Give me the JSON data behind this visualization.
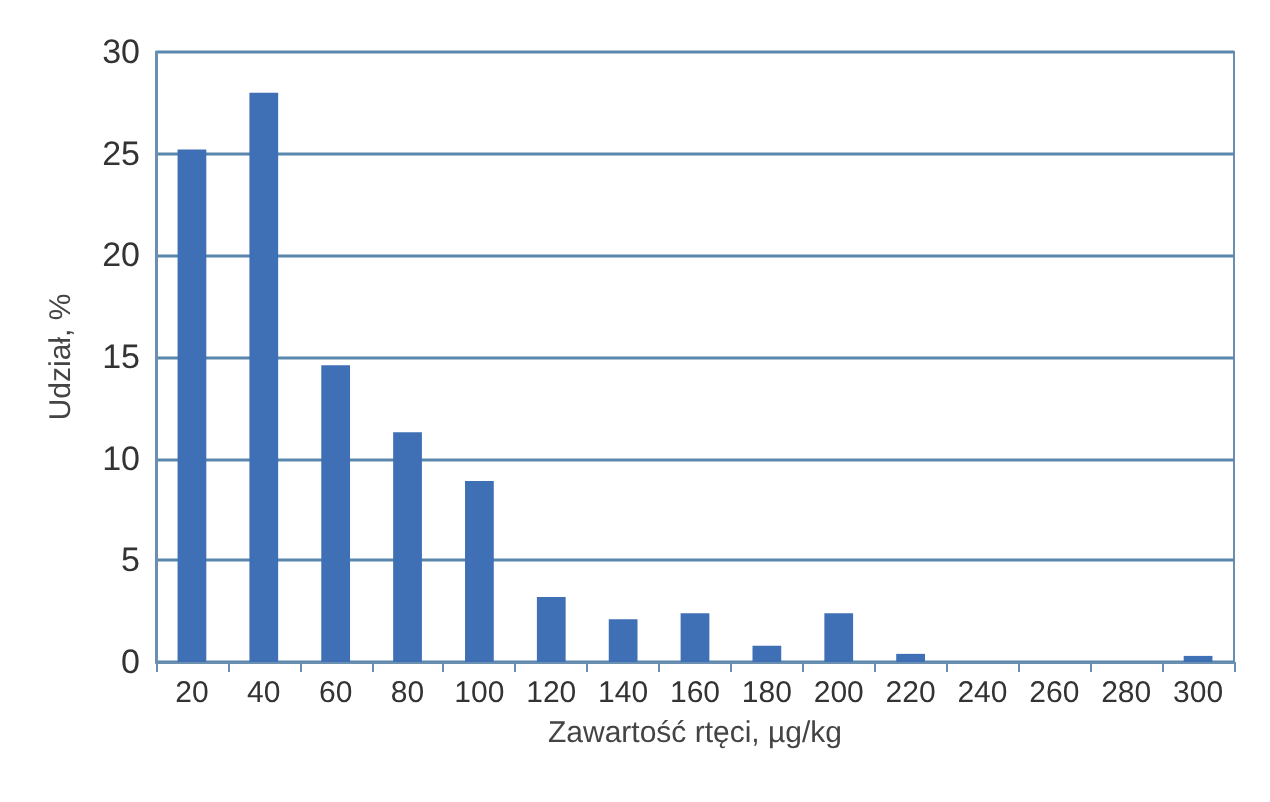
{
  "chart_data": {
    "type": "bar",
    "xlabel": "Zawartość rtęci, µg/kg",
    "ylabel": "Udział, %",
    "categories": [
      "20",
      "40",
      "60",
      "80",
      "100",
      "120",
      "140",
      "160",
      "180",
      "200",
      "220",
      "240",
      "260",
      "280",
      "300"
    ],
    "values": [
      25.2,
      28.0,
      14.6,
      11.3,
      8.9,
      3.2,
      2.1,
      2.4,
      0.8,
      2.4,
      0.4,
      0,
      0,
      0,
      0.3
    ],
    "color": "#3f6fb5",
    "ylim": [
      0,
      30
    ],
    "yticks": [
      0,
      5,
      10,
      15,
      20,
      25,
      30
    ],
    "grid": "y"
  }
}
